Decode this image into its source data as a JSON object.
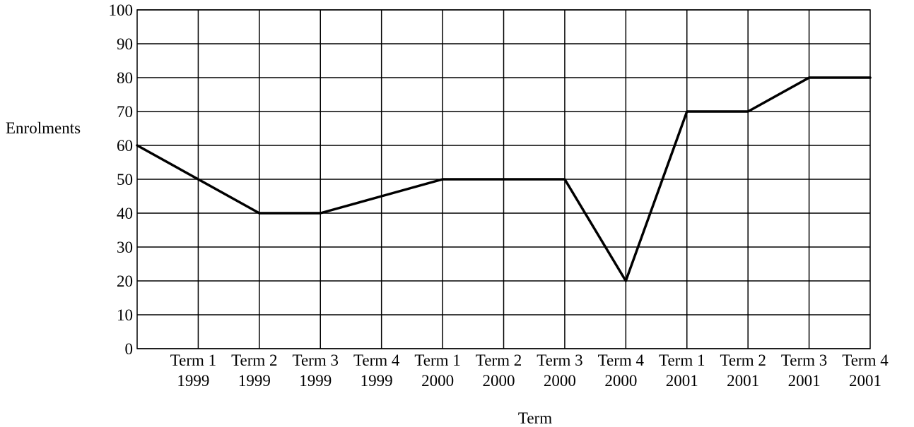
{
  "chart_data": {
    "type": "line",
    "xlabel": "Term",
    "ylabel": "Enrolments",
    "ylim": [
      0,
      100
    ],
    "yticks": [
      0,
      10,
      20,
      30,
      40,
      50,
      60,
      70,
      80,
      90,
      100
    ],
    "categories": [
      [
        "Term 1",
        "1999"
      ],
      [
        "Term 2",
        "1999"
      ],
      [
        "Term 3",
        "1999"
      ],
      [
        "Term 4",
        "1999"
      ],
      [
        "Term 1",
        "2000"
      ],
      [
        "Term 2",
        "2000"
      ],
      [
        "Term 3",
        "2000"
      ],
      [
        "Term 4",
        "2000"
      ],
      [
        "Term 1",
        "2001"
      ],
      [
        "Term 2",
        "2001"
      ],
      [
        "Term 3",
        "2001"
      ],
      [
        "Term 4",
        "2001"
      ]
    ],
    "x": [
      0,
      1,
      2,
      3,
      4,
      5,
      6,
      7,
      8,
      9,
      10,
      11,
      12
    ],
    "values": [
      60,
      50,
      40,
      40,
      45,
      50,
      50,
      50,
      20,
      70,
      70,
      80,
      80
    ],
    "grid": true,
    "colors": {
      "line": "#000000",
      "grid": "#000000",
      "background": "#ffffff"
    }
  }
}
